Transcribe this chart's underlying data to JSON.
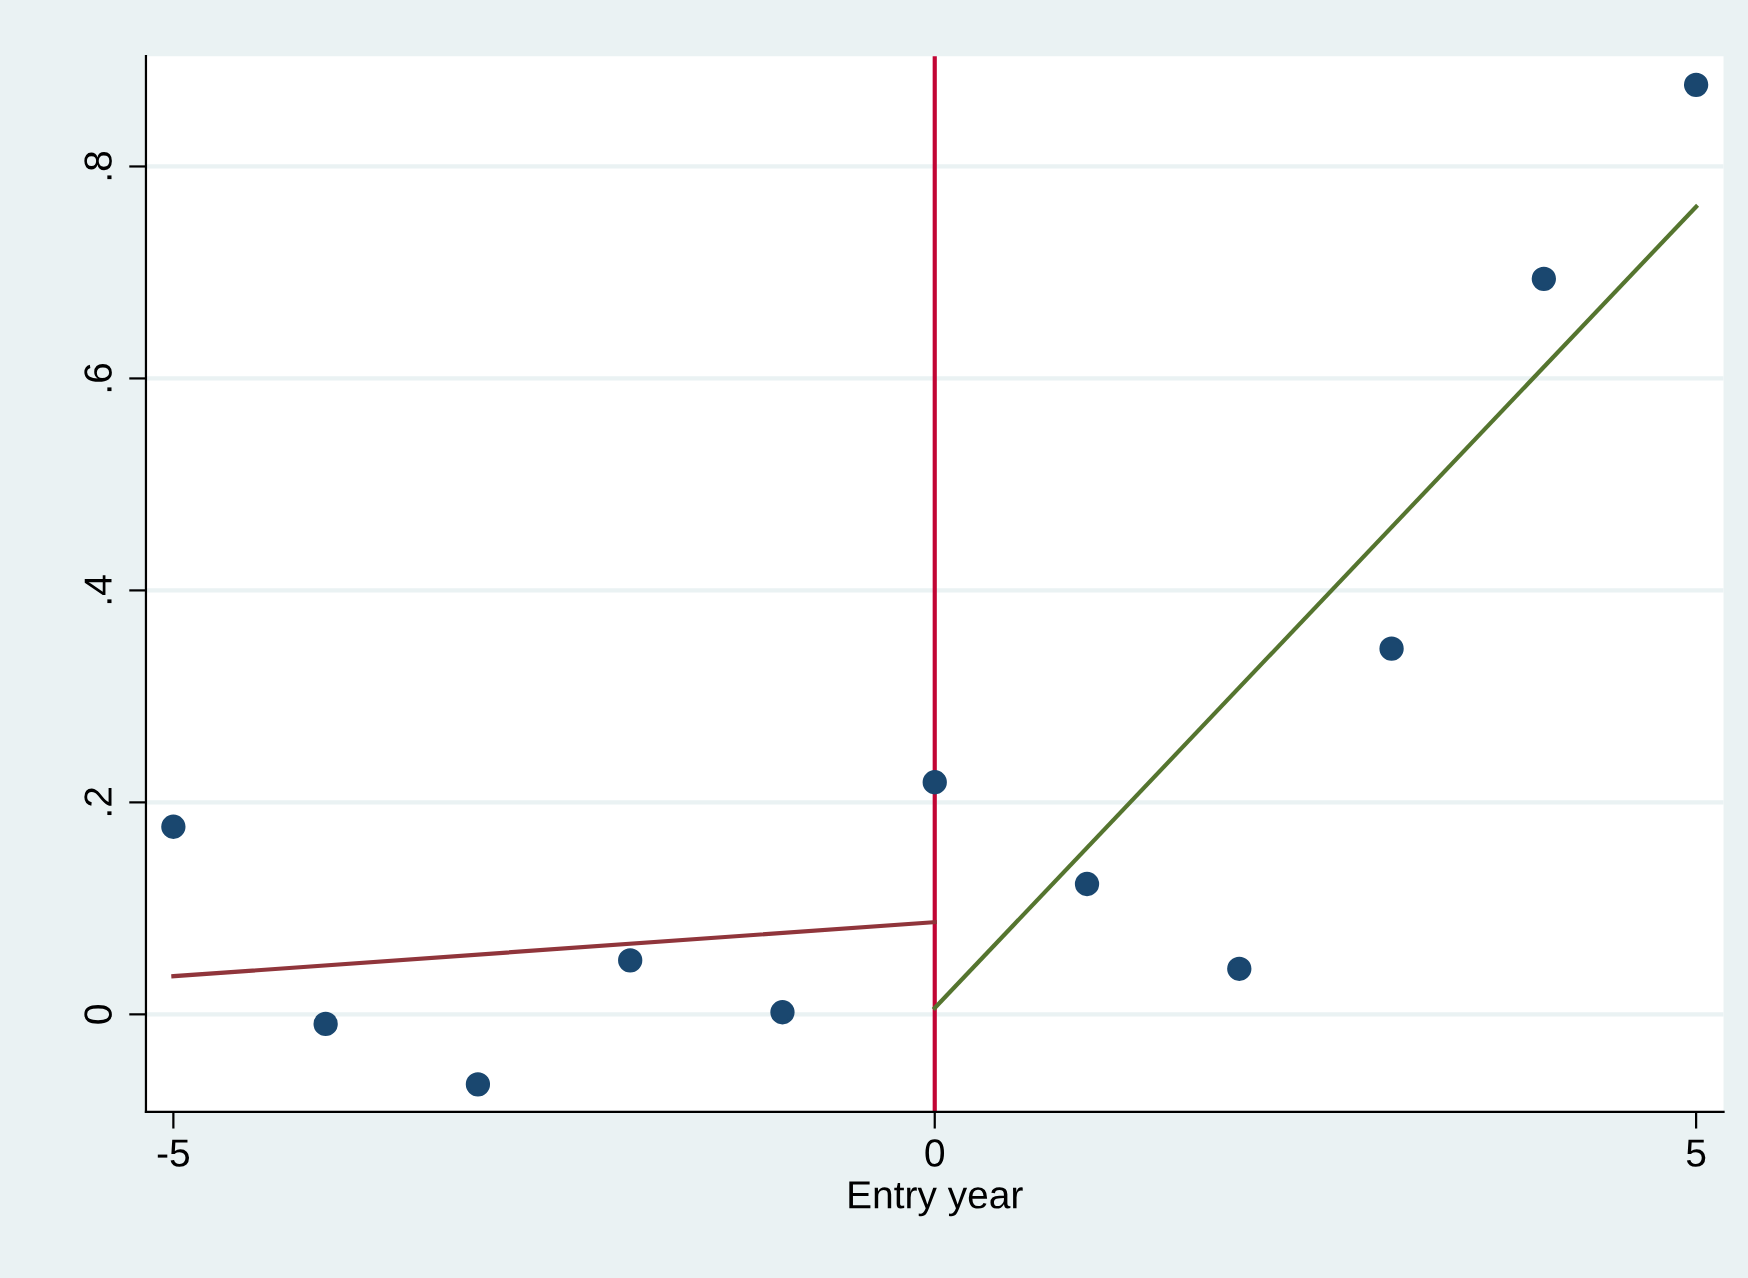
{
  "chart_data": {
    "type": "scatter",
    "xlabel": "Entry year",
    "series": [
      {
        "color": "#1a476f",
        "marker": "circle",
        "x": [
          -5,
          -4,
          -3,
          -2,
          -1,
          0,
          1,
          2,
          3,
          4,
          5
        ],
        "values": [
          0.177,
          -0.009,
          -0.066,
          0.051,
          0.002,
          0.219,
          0.123,
          0.043,
          0.345,
          0.694,
          0.877
        ]
      },
      {
        "type": "line",
        "color": "#90353b",
        "x": [
          -5,
          0
        ],
        "values": [
          0.036,
          0.087
        ]
      },
      {
        "type": "line",
        "color": "#55752f",
        "x": [
          0,
          5
        ],
        "values": [
          0.006,
          0.762
        ]
      }
    ],
    "ref_lines": [
      {
        "axis": "x",
        "value": 0,
        "color": "#c10534"
      }
    ],
    "xlim": [
      -5.18,
      5.18
    ],
    "ylim": [
      -0.092,
      0.904
    ],
    "xticks": [
      -5,
      0,
      5
    ],
    "yticks": [
      {
        "value": 0,
        "label": "0"
      },
      {
        "value": 0.2,
        "label": ".2"
      },
      {
        "value": 0.4,
        "label": ".4"
      },
      {
        "value": 0.6,
        "label": ".6"
      },
      {
        "value": 0.8,
        "label": ".8"
      }
    ],
    "grid": "y"
  }
}
